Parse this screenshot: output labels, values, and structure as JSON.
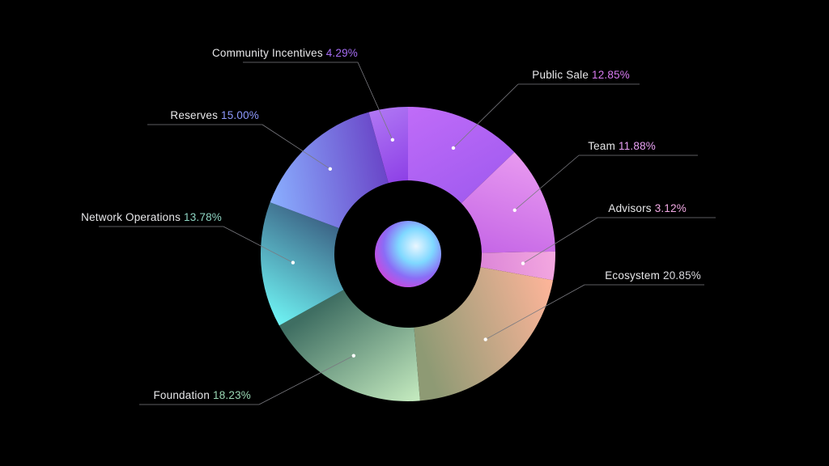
{
  "chart_data": {
    "type": "pie",
    "title": "",
    "slices": [
      {
        "label": "Public Sale",
        "value": 12.85,
        "value_text": "12.85%",
        "accent": "#d77af0",
        "colors": [
          "#c06cf8",
          "#a35cf0"
        ]
      },
      {
        "label": "Team",
        "value": 11.88,
        "value_text": "11.88%",
        "accent": "#e9a1f4",
        "colors": [
          "#e899f0",
          "#c566e6"
        ]
      },
      {
        "label": "Advisors",
        "value": 3.12,
        "value_text": "3.12%",
        "accent": "#f2a9e4",
        "colors": [
          "#f4a8e0",
          "#dc86d8"
        ]
      },
      {
        "label": "Ecosystem",
        "value": 20.85,
        "value_text": "20.85%",
        "accent": "#d8d8dc",
        "colors": [
          "#ffb59a",
          "#8e9a74"
        ]
      },
      {
        "label": "Foundation",
        "value": 18.23,
        "value_text": "18.23%",
        "accent": "#9ad8b4",
        "colors": [
          "#c6ecc0",
          "#3f6e62"
        ]
      },
      {
        "label": "Network Operations",
        "value": 13.78,
        "value_text": "13.78%",
        "accent": "#8fd6c4",
        "colors": [
          "#6ff4f4",
          "#3c6486"
        ]
      },
      {
        "label": "Reserves",
        "value": 15.0,
        "value_text": "15.00%",
        "accent": "#8f9bff",
        "colors": [
          "#8ab0ff",
          "#6a46c8"
        ]
      },
      {
        "label": "Community Incentives",
        "value": 4.29,
        "value_text": "4.29%",
        "accent": "#a56cf2",
        "colors": [
          "#b077f4",
          "#8d40e6"
        ]
      }
    ]
  }
}
